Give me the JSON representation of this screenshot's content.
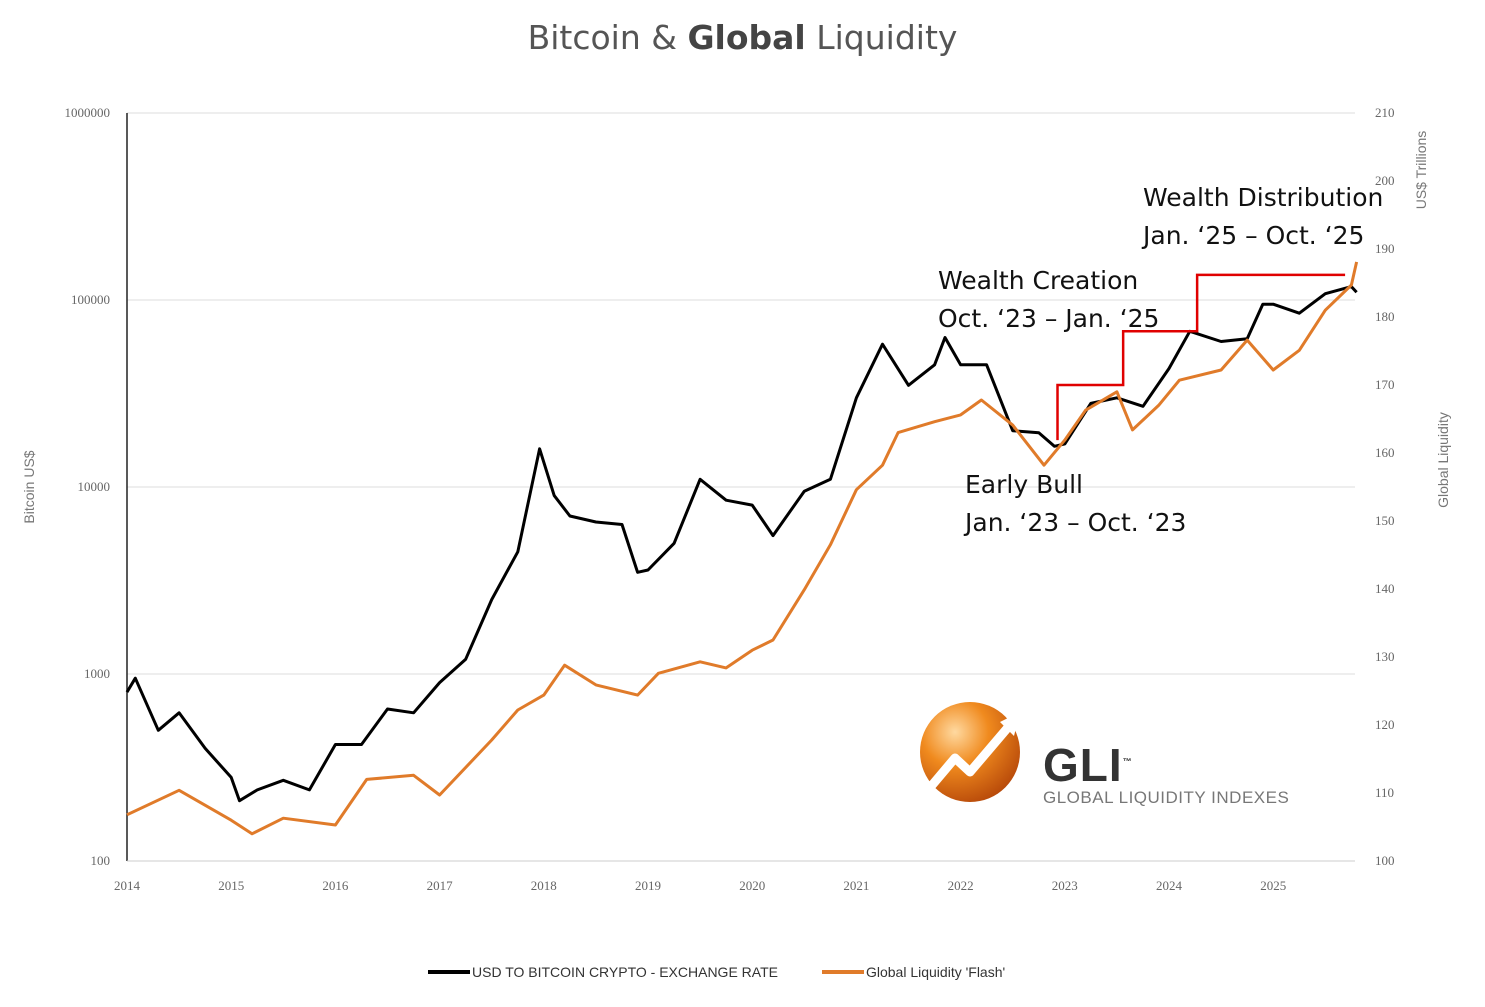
{
  "chart_data": {
    "type": "line",
    "title_parts": [
      "Bitcoin & ",
      "Global",
      " Liquidity"
    ],
    "xlabel": "",
    "x_ticks": [
      "2014",
      "2015",
      "2016",
      "2017",
      "2018",
      "2019",
      "2020",
      "2021",
      "2022",
      "2023",
      "2024",
      "2025"
    ],
    "xlim": [
      2014,
      2025.8
    ],
    "y_left": {
      "label": "Bitcoin US$",
      "scale": "log",
      "ylim": [
        100,
        1000000
      ],
      "ticks": [
        "100",
        "1000",
        "10000",
        "100000",
        "1000000"
      ]
    },
    "y_right": {
      "label": "Global Liquidity",
      "unit_label": "US$ Trillions",
      "scale": "linear",
      "ylim": [
        100,
        210
      ],
      "ticks": [
        "100",
        "110",
        "120",
        "130",
        "140",
        "150",
        "160",
        "170",
        "180",
        "190",
        "200",
        "210"
      ]
    },
    "grid": "horizontal",
    "legend_position": "bottom",
    "series": [
      {
        "name": "USD TO BITCOIN CRYPTO - EXCHANGE RATE",
        "axis": "left",
        "color": "#000000",
        "x": [
          2014.0,
          2014.08,
          2014.3,
          2014.5,
          2014.75,
          2015.0,
          2015.08,
          2015.25,
          2015.5,
          2015.75,
          2016.0,
          2016.25,
          2016.5,
          2016.75,
          2017.0,
          2017.25,
          2017.5,
          2017.75,
          2017.96,
          2018.1,
          2018.25,
          2018.5,
          2018.75,
          2018.9,
          2019.0,
          2019.25,
          2019.5,
          2019.75,
          2020.0,
          2020.2,
          2020.5,
          2020.75,
          2021.0,
          2021.25,
          2021.5,
          2021.75,
          2021.85,
          2022.0,
          2022.25,
          2022.5,
          2022.75,
          2022.9,
          2023.0,
          2023.25,
          2023.5,
          2023.75,
          2024.0,
          2024.2,
          2024.5,
          2024.75,
          2024.9,
          2025.0,
          2025.25,
          2025.5,
          2025.75,
          2025.8
        ],
        "y": [
          800,
          950,
          500,
          620,
          400,
          280,
          210,
          240,
          270,
          240,
          420,
          420,
          650,
          620,
          900,
          1200,
          2500,
          4500,
          16000,
          9000,
          7000,
          6500,
          6300,
          3500,
          3600,
          5000,
          11000,
          8500,
          8000,
          5500,
          9500,
          11000,
          30000,
          58000,
          35000,
          45000,
          63000,
          45000,
          45000,
          20000,
          19500,
          16500,
          17000,
          28000,
          30000,
          27000,
          43000,
          68000,
          60000,
          62000,
          95000,
          95000,
          85000,
          108000,
          118000,
          110000
        ]
      },
      {
        "name": "Global Liquidity 'Flash'",
        "axis": "right",
        "color": "#E07B2A",
        "x": [
          2014.0,
          2014.5,
          2015.0,
          2015.2,
          2015.5,
          2016.0,
          2016.3,
          2016.75,
          2017.0,
          2017.5,
          2017.75,
          2018.0,
          2018.2,
          2018.5,
          2018.9,
          2019.1,
          2019.5,
          2019.75,
          2020.0,
          2020.2,
          2020.5,
          2020.75,
          2021.0,
          2021.25,
          2021.4,
          2021.75,
          2022.0,
          2022.2,
          2022.5,
          2022.8,
          2023.0,
          2023.2,
          2023.5,
          2023.65,
          2023.9,
          2024.1,
          2024.5,
          2024.75,
          2025.0,
          2025.25,
          2025.5,
          2025.75,
          2025.8
        ],
        "y": [
          106.8,
          110.4,
          106,
          104,
          106.3,
          105.3,
          112,
          112.6,
          109.7,
          117.8,
          122.2,
          124.4,
          128.8,
          125.9,
          124.4,
          127.6,
          129.3,
          128.4,
          131,
          132.5,
          139.9,
          146.5,
          154.6,
          158.2,
          163,
          164.6,
          165.6,
          167.8,
          164.1,
          158.2,
          161.9,
          166.3,
          169,
          163.4,
          167,
          170.7,
          172.2,
          176.6,
          172.2,
          175.1,
          181,
          184.7,
          188.1
        ]
      }
    ],
    "annotations": [
      {
        "lines": [
          "Early Bull",
          "Jan. ‘23 – Oct. ‘23"
        ]
      },
      {
        "lines": [
          "Wealth Creation",
          "Oct. ‘23 – Jan. ‘25"
        ]
      },
      {
        "lines": [
          "Wealth Distribution",
          "Jan. ‘25 – Oct. ‘25"
        ]
      }
    ],
    "step_line": {
      "color": "#E00000",
      "axis": "right",
      "x": [
        2022.93,
        2022.93,
        2023.56,
        2023.56,
        2024.27,
        2024.27,
        2025.69
      ],
      "y": [
        161.9,
        170,
        170,
        177.9,
        177.9,
        186.2,
        186.2
      ]
    }
  },
  "logo": {
    "name": "GLI",
    "tagline": "GLOBAL LIQUIDITY INDEXES",
    "trademark": "™"
  }
}
